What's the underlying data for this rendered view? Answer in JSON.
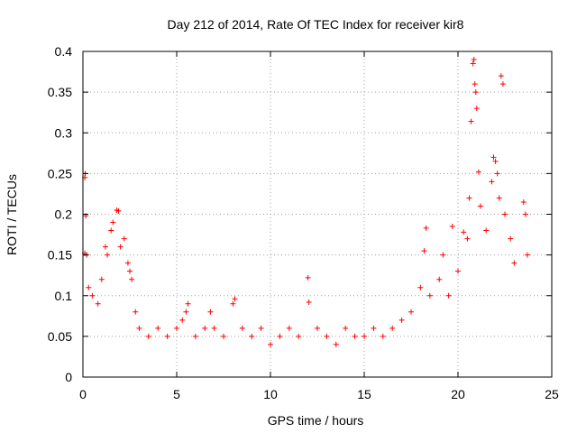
{
  "chart_data": {
    "type": "scatter",
    "title": "Day 212 of 2014, Rate Of TEC Index for receiver kir8",
    "xlabel": "GPS time / hours",
    "ylabel": "ROTI / TECUs",
    "xlim": [
      0,
      25
    ],
    "ylim": [
      0,
      0.4
    ],
    "xticks": [
      0,
      5,
      10,
      15,
      20,
      25
    ],
    "xtick_labels": [
      "0",
      "5",
      "10",
      "15",
      "20",
      "25"
    ],
    "yticks": [
      0,
      0.05,
      0.1,
      0.15,
      0.2,
      0.25,
      0.3,
      0.35,
      0.4
    ],
    "ytick_labels": [
      "0",
      "0.05",
      "0.1",
      "0.15",
      "0.2",
      "0.25",
      "0.3",
      "0.35",
      "0.4"
    ],
    "grid": true,
    "marker": "+",
    "color": "#ff0000",
    "series": [
      {
        "name": "ROTI",
        "points": [
          [
            0.1,
            0.245
          ],
          [
            0.12,
            0.25
          ],
          [
            0.15,
            0.198
          ],
          [
            0.1,
            0.152
          ],
          [
            0.2,
            0.15
          ],
          [
            0.3,
            0.11
          ],
          [
            0.5,
            0.1
          ],
          [
            0.8,
            0.09
          ],
          [
            1.0,
            0.12
          ],
          [
            1.2,
            0.16
          ],
          [
            1.3,
            0.15
          ],
          [
            1.5,
            0.18
          ],
          [
            1.6,
            0.19
          ],
          [
            1.8,
            0.205
          ],
          [
            1.9,
            0.204
          ],
          [
            2.0,
            0.16
          ],
          [
            2.2,
            0.17
          ],
          [
            2.4,
            0.14
          ],
          [
            2.5,
            0.13
          ],
          [
            2.6,
            0.12
          ],
          [
            2.8,
            0.08
          ],
          [
            3.0,
            0.06
          ],
          [
            3.5,
            0.05
          ],
          [
            4.0,
            0.06
          ],
          [
            4.5,
            0.05
          ],
          [
            5.0,
            0.06
          ],
          [
            5.3,
            0.07
          ],
          [
            5.5,
            0.08
          ],
          [
            5.6,
            0.09
          ],
          [
            6.0,
            0.05
          ],
          [
            6.5,
            0.06
          ],
          [
            6.8,
            0.08
          ],
          [
            7.0,
            0.06
          ],
          [
            7.5,
            0.05
          ],
          [
            8.0,
            0.09
          ],
          [
            8.1,
            0.096
          ],
          [
            8.5,
            0.06
          ],
          [
            9.0,
            0.05
          ],
          [
            9.5,
            0.06
          ],
          [
            10.0,
            0.04
          ],
          [
            10.5,
            0.05
          ],
          [
            11.0,
            0.06
          ],
          [
            11.5,
            0.05
          ],
          [
            12.0,
            0.122
          ],
          [
            12.05,
            0.092
          ],
          [
            12.5,
            0.06
          ],
          [
            13.0,
            0.05
          ],
          [
            13.5,
            0.04
          ],
          [
            14.0,
            0.06
          ],
          [
            14.5,
            0.05
          ],
          [
            15.0,
            0.05
          ],
          [
            15.5,
            0.06
          ],
          [
            16.0,
            0.05
          ],
          [
            16.5,
            0.06
          ],
          [
            17.0,
            0.07
          ],
          [
            17.5,
            0.08
          ],
          [
            18.0,
            0.11
          ],
          [
            18.2,
            0.155
          ],
          [
            18.3,
            0.183
          ],
          [
            18.5,
            0.1
          ],
          [
            19.0,
            0.12
          ],
          [
            19.2,
            0.15
          ],
          [
            19.5,
            0.1
          ],
          [
            19.7,
            0.185
          ],
          [
            20.0,
            0.13
          ],
          [
            20.3,
            0.178
          ],
          [
            20.5,
            0.17
          ],
          [
            20.6,
            0.22
          ],
          [
            20.7,
            0.314
          ],
          [
            20.8,
            0.385
          ],
          [
            20.85,
            0.39
          ],
          [
            20.9,
            0.36
          ],
          [
            20.95,
            0.35
          ],
          [
            21.0,
            0.33
          ],
          [
            21.1,
            0.252
          ],
          [
            21.2,
            0.21
          ],
          [
            21.5,
            0.18
          ],
          [
            21.8,
            0.24
          ],
          [
            21.9,
            0.27
          ],
          [
            22.0,
            0.265
          ],
          [
            22.1,
            0.25
          ],
          [
            22.2,
            0.22
          ],
          [
            22.3,
            0.37
          ],
          [
            22.4,
            0.36
          ],
          [
            22.5,
            0.2
          ],
          [
            22.8,
            0.17
          ],
          [
            23.0,
            0.14
          ],
          [
            23.5,
            0.215
          ],
          [
            23.6,
            0.2
          ],
          [
            23.7,
            0.15
          ]
        ]
      }
    ]
  }
}
